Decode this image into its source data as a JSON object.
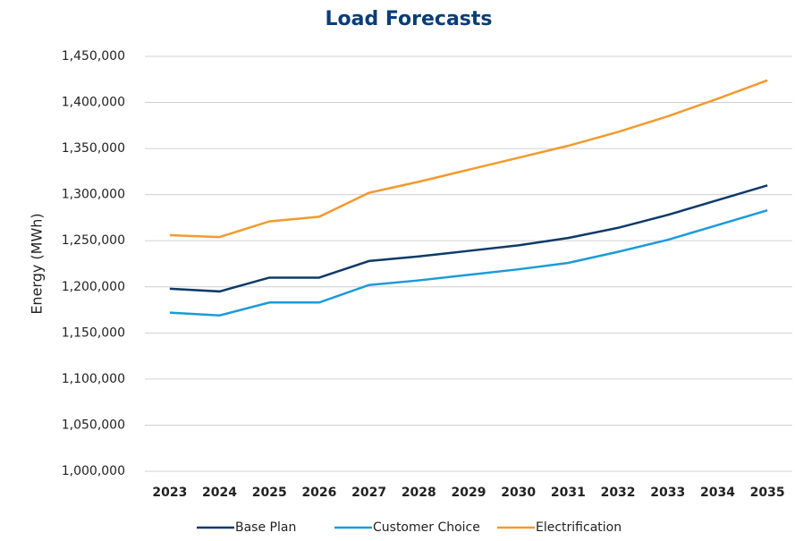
{
  "chart_data": {
    "type": "line",
    "title": "Load Forecasts",
    "y_label": "Energy (MWh)",
    "categories": [
      "2023",
      "2024",
      "2025",
      "2026",
      "2027",
      "2028",
      "2029",
      "2030",
      "2031",
      "2032",
      "2033",
      "2034",
      "2035"
    ],
    "series": [
      {
        "name": "Base Plan",
        "color": "#0e3a68",
        "values": [
          1198000,
          1195000,
          1210000,
          1210000,
          1228000,
          1233000,
          1239000,
          1245000,
          1253000,
          1264000,
          1278000,
          1294000,
          1310000
        ]
      },
      {
        "name": "Customer Choice",
        "color": "#1b9bd7",
        "values": [
          1172000,
          1169000,
          1183000,
          1183000,
          1202000,
          1207000,
          1213000,
          1219000,
          1226000,
          1238000,
          1251000,
          1267000,
          1283000
        ]
      },
      {
        "name": "Electrification",
        "color": "#f29a2e",
        "values": [
          1256000,
          1254000,
          1271000,
          1276000,
          1302000,
          1314000,
          1327000,
          1340000,
          1353000,
          1368000,
          1385000,
          1404000,
          1424000
        ]
      }
    ],
    "ylim": [
      1000000,
      1450000
    ],
    "yticks": [
      {
        "value": 1000000,
        "label": "1,000,000"
      },
      {
        "value": 1050000,
        "label": "1,050,000"
      },
      {
        "value": 1100000,
        "label": "1,100,000"
      },
      {
        "value": 1150000,
        "label": "1,150,000"
      },
      {
        "value": 1200000,
        "label": "1,200,000"
      },
      {
        "value": 1250000,
        "label": "1,250,000"
      },
      {
        "value": 1300000,
        "label": "1,300,000"
      },
      {
        "value": 1350000,
        "label": "1,350,000"
      },
      {
        "value": 1400000,
        "label": "1,400,000"
      },
      {
        "value": 1450000,
        "label": "1,450,000"
      }
    ],
    "grid": true,
    "legend": "bottom"
  }
}
